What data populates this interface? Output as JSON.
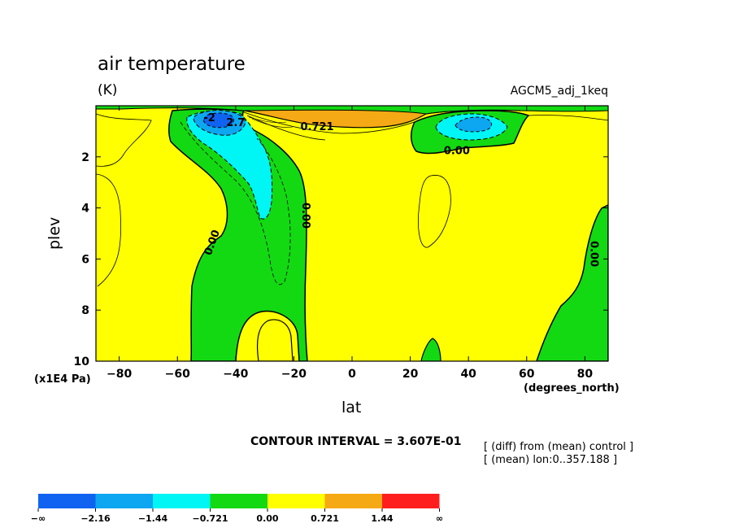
{
  "chart_data": {
    "type": "contour",
    "title": "air temperature",
    "units": "(K)",
    "run_label": "AGCM5_adj_1keq",
    "xlabel": "lat",
    "ylabel": "plev",
    "x_units": "(degrees_north)",
    "y_units": "(x1E4 Pa)",
    "xlim": [
      -88,
      88
    ],
    "ylim": [
      10,
      0
    ],
    "x_ticks": [
      -80,
      -60,
      -40,
      -20,
      0,
      20,
      40,
      60,
      80
    ],
    "x_tick_labels": [
      "−80",
      "−60",
      "−40",
      "−20",
      "0",
      "20",
      "40",
      "60",
      "80"
    ],
    "y_ticks": [
      2,
      4,
      6,
      8,
      10
    ],
    "y_tick_labels": [
      "2",
      "4",
      "6",
      "8",
      "10"
    ],
    "contour_interval_text": "CONTOUR INTERVAL = 3.607E-01",
    "contour_interval": 0.3607,
    "contour_labels": [
      {
        "text": "0.721",
        "lat": -12,
        "plev": 0.95
      },
      {
        "text": "0.00",
        "lat": 36,
        "plev": 1.9
      },
      {
        "text": "0.00",
        "lat": -17,
        "plev": 4.3
      },
      {
        "text": "0.00",
        "lat": -47,
        "plev": 5.4
      },
      {
        "text": "0.00",
        "lat": 82,
        "plev": 5.8
      },
      {
        "text": "-2",
        "lat": -49,
        "plev": 0.6
      },
      {
        "text": "2.7",
        "lat": -40,
        "plev": 0.8
      }
    ],
    "notes": [
      "[ (diff) from (mean) control ]",
      "[ (mean) lon:0..357.188 ]"
    ],
    "colorbar": {
      "levels": [
        "−∞",
        "−2.16",
        "−1.44",
        "−0.721",
        "0.00",
        "0.721",
        "1.44",
        "∞"
      ],
      "colors": [
        "#0f63f0",
        "#0da6f0",
        "#00f5f5",
        "#13d913",
        "#ffff00",
        "#f5a914",
        "#ff1e1e"
      ]
    },
    "regions": [
      {
        "name": "bg",
        "level": "0 to 0.721",
        "color": "#ffff00"
      },
      {
        "name": "neg-sh",
        "level": "-0.721 to 0",
        "color": "#13d913"
      },
      {
        "name": "neg-sh-cyan",
        "level": "-1.44 to -0.721",
        "color": "#00f5f5"
      },
      {
        "name": "neg-sh-core1",
        "level": "-2.16 to -1.44",
        "color": "#0da6f0"
      },
      {
        "name": "neg-sh-core2",
        "level": "< -2.16",
        "color": "#0f63f0"
      },
      {
        "name": "neg-nh",
        "level": "-0.721 to 0",
        "color": "#13d913"
      },
      {
        "name": "neg-nh-cyan",
        "level": "-1.44 to -0.721",
        "color": "#00f5f5"
      },
      {
        "name": "neg-nh-core",
        "level": "-2.16 to -1.44",
        "color": "#0da6f0"
      },
      {
        "name": "pos-orange",
        "level": "0.721 to 1.44",
        "color": "#f5a914"
      },
      {
        "name": "neg-bottom-left",
        "level": "-0.721 to 0",
        "color": "#13d913"
      },
      {
        "name": "neg-bottom-right",
        "level": "-0.721 to 0",
        "color": "#13d913"
      },
      {
        "name": "neg-bottom-mid",
        "level": "-0.721 to 0",
        "color": "#13d913"
      },
      {
        "name": "neg-top-strip",
        "level": "-0.721 to 0",
        "color": "#13d913"
      }
    ]
  }
}
